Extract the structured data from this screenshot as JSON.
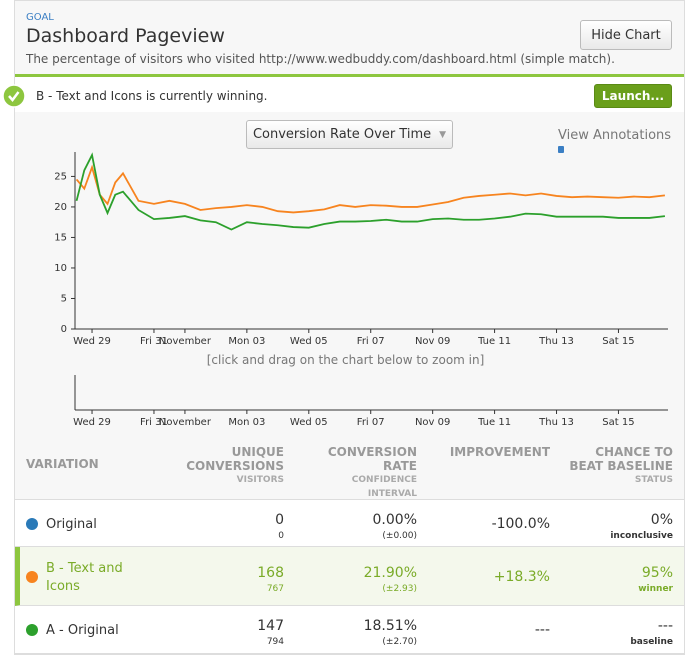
{
  "header": {
    "kicker": "GOAL",
    "title": "Dashboard Pageview",
    "description": "The percentage of visitors who visited http://www.wedbuddy.com/dashboard.html (simple match).",
    "button": "Hide Chart"
  },
  "banner": {
    "message": "B - Text and Icons is currently winning.",
    "button": "Launch..."
  },
  "chart_panel": {
    "dropdown": "Conversion Rate Over Time",
    "annotations": "View Annotations",
    "hint": "[click and drag on the chart below to zoom in]"
  },
  "chart_data": {
    "type": "line",
    "x": [
      28.5,
      28.75,
      29,
      29.25,
      29.5,
      29.75,
      30,
      30.5,
      31,
      31.5,
      32,
      32.5,
      33,
      33.5,
      34,
      34.5,
      35,
      35.5,
      36,
      36.5,
      37,
      37.5,
      38,
      38.5,
      39,
      39.5,
      40,
      40.5,
      41,
      41.5,
      42,
      42.5,
      43,
      43.5,
      44,
      44.5,
      45,
      45.5,
      46,
      46.5,
      47,
      47.5
    ],
    "series": [
      {
        "name": "B - Text and Icons",
        "color": "#f7841f",
        "values": [
          24.5,
          23,
          26.5,
          22,
          20.5,
          24,
          25.5,
          21,
          20.5,
          21,
          20.5,
          19.5,
          19.8,
          20,
          20.3,
          20,
          19.3,
          19.1,
          19.3,
          19.6,
          20.3,
          20,
          20.3,
          20.2,
          20,
          20,
          20.4,
          20.8,
          21.5,
          21.8,
          22,
          22.2,
          21.9,
          22.2,
          21.8,
          21.6,
          21.7,
          21.6,
          21.5,
          21.7,
          21.6,
          21.9
        ]
      },
      {
        "name": "A - Original",
        "color": "#2ca02c",
        "values": [
          21,
          26,
          28.5,
          22,
          19,
          22,
          22.5,
          19.5,
          18,
          18.2,
          18.5,
          17.8,
          17.5,
          16.3,
          17.5,
          17.2,
          17,
          16.7,
          16.6,
          17.2,
          17.6,
          17.6,
          17.7,
          17.9,
          17.6,
          17.6,
          18,
          18.1,
          17.9,
          17.9,
          18.1,
          18.4,
          18.9,
          18.8,
          18.4,
          18.4,
          18.4,
          18.4,
          18.2,
          18.2,
          18.2,
          18.5
        ]
      }
    ],
    "xlim": [
      28.45,
      47.6
    ],
    "xticks": [
      {
        "value": 29,
        "label": "Wed 29"
      },
      {
        "value": 31,
        "label": "Fri 31"
      },
      {
        "value": 32,
        "label": "November"
      },
      {
        "value": 34,
        "label": "Mon 03"
      },
      {
        "value": 36,
        "label": "Wed 05"
      },
      {
        "value": 38,
        "label": "Fri 07"
      },
      {
        "value": 40,
        "label": "Nov 09"
      },
      {
        "value": 42,
        "label": "Tue 11"
      },
      {
        "value": 44,
        "label": "Thu 13"
      },
      {
        "value": 46,
        "label": "Sat 15"
      }
    ],
    "ylim": [
      0,
      29
    ],
    "yticks": [
      0,
      5,
      10,
      15,
      20,
      25
    ]
  },
  "table": {
    "headers": [
      {
        "main": "VARIATION"
      },
      {
        "main": "UNIQUE CONVERSIONS",
        "sub": "VISITORS"
      },
      {
        "main": "CONVERSION RATE",
        "sub": "CONFIDENCE INTERVAL"
      },
      {
        "main": "IMPROVEMENT"
      },
      {
        "main": "CHANCE TO BEAT BASELINE",
        "sub": "STATUS"
      }
    ],
    "rows": [
      {
        "color": "#2a7ab8",
        "name": "Original",
        "conversions": "0",
        "visitors": "0",
        "rate": "0.00%",
        "interval": "(±0.00)",
        "improvement": "-100.0%",
        "chance": "0%",
        "status": "inconclusive"
      },
      {
        "color": "#f7841f",
        "name": "B - Text and Icons",
        "conversions": "168",
        "visitors": "767",
        "rate": "21.90%",
        "interval": "(±2.93)",
        "improvement": "+18.3%",
        "chance": "95%",
        "status": "winner"
      },
      {
        "color": "#2ca02c",
        "name": "A - Original",
        "conversions": "147",
        "visitors": "794",
        "rate": "18.51%",
        "interval": "(±2.70)",
        "improvement": "---",
        "chance": "---",
        "status": "baseline"
      }
    ]
  }
}
